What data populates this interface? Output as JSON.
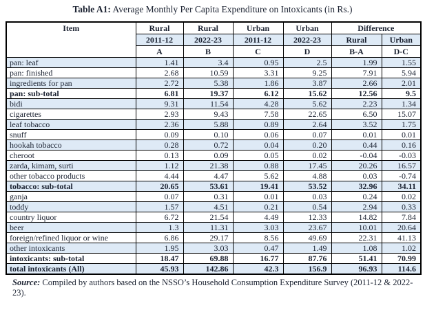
{
  "title": {
    "prefix": "Table A1:",
    "rest": " Average Monthly Per Capita Expenditure on Intoxicants (in Rs.)"
  },
  "table": {
    "header": {
      "item_label": "Item",
      "col_groups": [
        "Rural",
        "Rural",
        "Urban",
        "Urban",
        "Difference"
      ],
      "years": [
        "2011-12",
        "2022-23",
        "2011-12",
        "2022-23",
        "Rural",
        "Urban"
      ],
      "codes": [
        "A",
        "B",
        "C",
        "D",
        "B-A",
        "D-C"
      ]
    },
    "rows": [
      {
        "item": "pan: leaf",
        "values": [
          "1.41",
          "3.4",
          "0.95",
          "2.5",
          "1.99",
          "1.55"
        ],
        "bold": false,
        "shaded": true
      },
      {
        "item": "pan: finished",
        "values": [
          "2.68",
          "10.59",
          "3.31",
          "9.25",
          "7.91",
          "5.94"
        ],
        "bold": false,
        "shaded": false
      },
      {
        "item": "ingredients for pan",
        "values": [
          "2.72",
          "5.38",
          "1.86",
          "3.87",
          "2.66",
          "2.01"
        ],
        "bold": false,
        "shaded": true
      },
      {
        "item": "pan: sub-total",
        "values": [
          "6.81",
          "19.37",
          "6.12",
          "15.62",
          "12.56",
          "9.5"
        ],
        "bold": true,
        "shaded": false
      },
      {
        "item": "bidi",
        "values": [
          "9.31",
          "11.54",
          "4.28",
          "5.62",
          "2.23",
          "1.34"
        ],
        "bold": false,
        "shaded": true
      },
      {
        "item": "cigarettes",
        "values": [
          "2.93",
          "9.43",
          "7.58",
          "22.65",
          "6.50",
          "15.07"
        ],
        "bold": false,
        "shaded": false
      },
      {
        "item": "leaf tobacco",
        "values": [
          "2.36",
          "5.88",
          "0.89",
          "2.64",
          "3.52",
          "1.75"
        ],
        "bold": false,
        "shaded": true
      },
      {
        "item": "snuff",
        "values": [
          "0.09",
          "0.10",
          "0.06",
          "0.07",
          "0.01",
          "0.01"
        ],
        "bold": false,
        "shaded": false
      },
      {
        "item": "hookah tobacco",
        "values": [
          "0.28",
          "0.72",
          "0.04",
          "0.20",
          "0.44",
          "0.16"
        ],
        "bold": false,
        "shaded": true
      },
      {
        "item": "cheroot",
        "values": [
          "0.13",
          "0.09",
          "0.05",
          "0.02",
          "-0.04",
          "-0.03"
        ],
        "bold": false,
        "shaded": false
      },
      {
        "item": "zarda, kimam, surti",
        "values": [
          "1.12",
          "21.38",
          "0.88",
          "17.45",
          "20.26",
          "16.57"
        ],
        "bold": false,
        "shaded": true
      },
      {
        "item": "other tobacco products",
        "values": [
          "4.44",
          "4.47",
          "5.62",
          "4.88",
          "0.03",
          "-0.74"
        ],
        "bold": false,
        "shaded": false
      },
      {
        "item": "tobacco: sub-total",
        "values": [
          "20.65",
          "53.61",
          "19.41",
          "53.52",
          "32.96",
          "34.11"
        ],
        "bold": true,
        "shaded": true
      },
      {
        "item": "ganja",
        "values": [
          "0.07",
          "0.31",
          "0.01",
          "0.03",
          "0.24",
          "0.02"
        ],
        "bold": false,
        "shaded": false
      },
      {
        "item": "toddy",
        "values": [
          "1.57",
          "4.51",
          "0.21",
          "0.54",
          "2.94",
          "0.33"
        ],
        "bold": false,
        "shaded": true
      },
      {
        "item": "country liquor",
        "values": [
          "6.72",
          "21.54",
          "4.49",
          "12.33",
          "14.82",
          "7.84"
        ],
        "bold": false,
        "shaded": false
      },
      {
        "item": "beer",
        "values": [
          "1.3",
          "11.31",
          "3.03",
          "23.67",
          "10.01",
          "20.64"
        ],
        "bold": false,
        "shaded": true
      },
      {
        "item": "foreign/refined liquor or wine",
        "values": [
          "6.86",
          "29.17",
          "8.56",
          "49.69",
          "22.31",
          "41.13"
        ],
        "bold": false,
        "shaded": false
      },
      {
        "item": "other intoxicants",
        "values": [
          "1.95",
          "3.03",
          "0.47",
          "1.49",
          "1.08",
          "1.02"
        ],
        "bold": false,
        "shaded": true
      },
      {
        "item": "intoxicants: sub-total",
        "values": [
          "18.47",
          "69.88",
          "16.77",
          "87.76",
          "51.41",
          "70.99"
        ],
        "bold": true,
        "shaded": false
      },
      {
        "item": "total intoxicants (All)",
        "values": [
          "45.93",
          "142.86",
          "42.3",
          "156.9",
          "96.93",
          "114.6"
        ],
        "bold": true,
        "shaded": true
      }
    ]
  },
  "source_note": {
    "label": "Source:",
    "text": " Compiled by authors based on the NSSO’s Household Consumption Expenditure Survey (2011-12 & 2022-23)."
  },
  "colors": {
    "shaded_row": "#deeaf6",
    "border": "#000000",
    "text": "#1b2231"
  }
}
